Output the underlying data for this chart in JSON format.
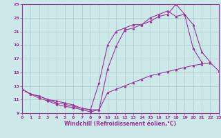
{
  "xlabel": "Windchill (Refroidissement éolien,°C)",
  "bg_color": "#cce8e8",
  "grid_color": "#aacccc",
  "line_color": "#993399",
  "xlim": [
    0,
    23
  ],
  "ylim": [
    9,
    25
  ],
  "yticks": [
    9,
    11,
    13,
    15,
    17,
    19,
    21,
    23,
    25
  ],
  "xticks": [
    0,
    1,
    2,
    3,
    4,
    5,
    6,
    7,
    8,
    9,
    10,
    11,
    12,
    13,
    14,
    15,
    16,
    17,
    18,
    19,
    20,
    21,
    22,
    23
  ],
  "s1_x": [
    0,
    1,
    2,
    3,
    4,
    5,
    6,
    7,
    8,
    9,
    10,
    11,
    12,
    13,
    14,
    15,
    16,
    17,
    18,
    19,
    20,
    21,
    22,
    23
  ],
  "s1_y": [
    12.5,
    11.8,
    11.5,
    11.0,
    10.8,
    10.5,
    10.2,
    9.7,
    9.5,
    9.5,
    12.0,
    12.5,
    13.0,
    13.5,
    14.0,
    14.5,
    14.8,
    15.1,
    15.4,
    15.7,
    16.0,
    16.2,
    16.4,
    15.2
  ],
  "s2_x": [
    0,
    1,
    2,
    3,
    4,
    5,
    6,
    7,
    8,
    9,
    10,
    11,
    12,
    13,
    14,
    15,
    16,
    17,
    18,
    19,
    20,
    21,
    22
  ],
  "s2_y": [
    12.5,
    11.8,
    11.5,
    11.0,
    10.5,
    10.3,
    10.0,
    9.7,
    9.5,
    13.5,
    19.0,
    21.0,
    21.5,
    22.0,
    22.0,
    22.5,
    23.2,
    23.5,
    25.0,
    23.5,
    22.0,
    18.0,
    16.5
  ],
  "s3_x": [
    0,
    1,
    2,
    3,
    4,
    5,
    6,
    7,
    8,
    9,
    10,
    11,
    12,
    13,
    14,
    15,
    16,
    17,
    18,
    19,
    20,
    21
  ],
  "s3_y": [
    12.5,
    11.8,
    11.2,
    10.8,
    10.3,
    10.0,
    9.8,
    9.5,
    9.2,
    9.5,
    15.5,
    18.8,
    21.2,
    21.5,
    22.0,
    23.0,
    23.5,
    24.0,
    23.2,
    23.5,
    18.5,
    16.5
  ]
}
